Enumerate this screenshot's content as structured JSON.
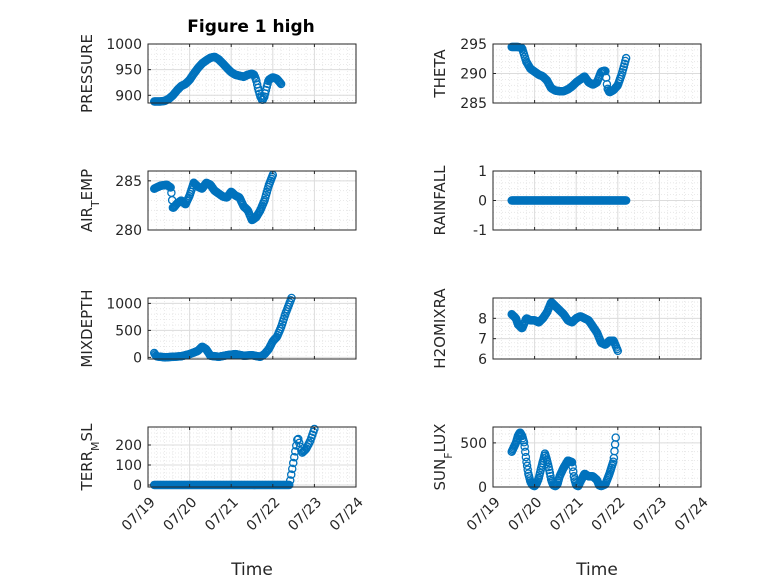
{
  "figure": {
    "title": "Figure 1 high",
    "marker_color": "#0072BD",
    "grid": true,
    "minor_grid": true
  },
  "chart_data": [
    {
      "type": "scatter",
      "ylabel": "PRESSURE",
      "ylim": [
        885,
        1000
      ],
      "yticks": [
        900,
        950,
        1000
      ],
      "xlim": [
        0,
        5
      ],
      "xticks": [
        0,
        1,
        2,
        3,
        4,
        5
      ],
      "xticklabels": [],
      "curve": [
        [
          0.15,
          888
        ],
        [
          0.2,
          888
        ],
        [
          0.3,
          888
        ],
        [
          0.4,
          889
        ],
        [
          0.5,
          893
        ],
        [
          0.6,
          900
        ],
        [
          0.7,
          910
        ],
        [
          0.8,
          918
        ],
        [
          0.9,
          922
        ],
        [
          1.0,
          930
        ],
        [
          1.1,
          942
        ],
        [
          1.2,
          953
        ],
        [
          1.3,
          962
        ],
        [
          1.4,
          968
        ],
        [
          1.5,
          973
        ],
        [
          1.6,
          975
        ],
        [
          1.7,
          970
        ],
        [
          1.8,
          962
        ],
        [
          1.9,
          953
        ],
        [
          2.0,
          945
        ],
        [
          2.1,
          940
        ],
        [
          2.2,
          938
        ],
        [
          2.3,
          936
        ],
        [
          2.4,
          940
        ],
        [
          2.5,
          942
        ],
        [
          2.55,
          940
        ],
        [
          2.6,
          930
        ],
        [
          2.65,
          912
        ],
        [
          2.7,
          898
        ],
        [
          2.75,
          890
        ],
        [
          2.8,
          898
        ],
        [
          2.85,
          915
        ],
        [
          2.9,
          930
        ],
        [
          3.0,
          935
        ],
        [
          3.1,
          932
        ],
        [
          3.2,
          922
        ]
      ],
      "points": 160
    },
    {
      "type": "scatter",
      "ylabel": "THETA",
      "ylim": [
        285,
        295
      ],
      "yticks": [
        285,
        290,
        295
      ],
      "xlim": [
        0,
        5
      ],
      "xticks": [
        0,
        1,
        2,
        3,
        4,
        5
      ],
      "xticklabels": [],
      "curve": [
        [
          0.45,
          294.5
        ],
        [
          0.6,
          294.5
        ],
        [
          0.7,
          294.3
        ],
        [
          0.8,
          292.0
        ],
        [
          0.9,
          290.8
        ],
        [
          1.0,
          290.3
        ],
        [
          1.1,
          289.8
        ],
        [
          1.2,
          289.5
        ],
        [
          1.3,
          288.8
        ],
        [
          1.4,
          287.5
        ],
        [
          1.5,
          287.1
        ],
        [
          1.6,
          287.0
        ],
        [
          1.7,
          287.0
        ],
        [
          1.8,
          287.3
        ],
        [
          1.9,
          287.8
        ],
        [
          2.0,
          288.5
        ],
        [
          2.1,
          289.0
        ],
        [
          2.2,
          289.5
        ],
        [
          2.3,
          288.5
        ],
        [
          2.4,
          288.1
        ],
        [
          2.5,
          288.5
        ],
        [
          2.6,
          290.3
        ],
        [
          2.7,
          290.5
        ],
        [
          2.75,
          287.5
        ],
        [
          2.8,
          286.8
        ],
        [
          2.9,
          287.2
        ],
        [
          3.0,
          288.0
        ],
        [
          3.1,
          290.0
        ],
        [
          3.2,
          292.6
        ]
      ],
      "points": 150
    },
    {
      "type": "scatter",
      "ylabel": "AIR_TEMP",
      "ylim": [
        280,
        286
      ],
      "yticks": [
        280,
        285
      ],
      "xlim": [
        0,
        5
      ],
      "xticks": [
        0,
        1,
        2,
        3,
        4,
        5
      ],
      "xticklabels": [],
      "curve": [
        [
          0.15,
          284.2
        ],
        [
          0.3,
          284.5
        ],
        [
          0.45,
          284.6
        ],
        [
          0.55,
          284.3
        ],
        [
          0.6,
          282.2
        ],
        [
          0.7,
          282.7
        ],
        [
          0.8,
          283.0
        ],
        [
          0.9,
          282.6
        ],
        [
          1.0,
          283.5
        ],
        [
          1.1,
          284.8
        ],
        [
          1.2,
          284.4
        ],
        [
          1.3,
          284.2
        ],
        [
          1.4,
          284.8
        ],
        [
          1.5,
          284.6
        ],
        [
          1.6,
          284.0
        ],
        [
          1.7,
          283.7
        ],
        [
          1.8,
          283.4
        ],
        [
          1.9,
          283.3
        ],
        [
          2.0,
          283.9
        ],
        [
          2.1,
          283.5
        ],
        [
          2.2,
          283.3
        ],
        [
          2.3,
          282.4
        ],
        [
          2.4,
          282.0
        ],
        [
          2.5,
          281.0
        ],
        [
          2.6,
          281.3
        ],
        [
          2.7,
          282.0
        ],
        [
          2.8,
          283.0
        ],
        [
          2.9,
          284.5
        ],
        [
          3.0,
          285.6
        ]
      ],
      "points": 160
    },
    {
      "type": "scatter",
      "ylabel": "RAINFALL",
      "ylim": [
        -1,
        1
      ],
      "yticks": [
        -1,
        0,
        1
      ],
      "xlim": [
        0,
        5
      ],
      "xticks": [
        0,
        1,
        2,
        3,
        4,
        5
      ],
      "xticklabels": [],
      "curve": [
        [
          0.45,
          0
        ],
        [
          3.2,
          0
        ]
      ],
      "points": 150
    },
    {
      "type": "scatter",
      "ylabel": "MIXDEPTH",
      "ylim": [
        -30,
        1100
      ],
      "yticks": [
        0,
        500,
        1000
      ],
      "xlim": [
        0,
        5
      ],
      "xticks": [
        0,
        1,
        2,
        3,
        4,
        5
      ],
      "xticklabels": [],
      "curve": [
        [
          0.15,
          80
        ],
        [
          0.2,
          20
        ],
        [
          0.4,
          0
        ],
        [
          0.6,
          10
        ],
        [
          0.8,
          20
        ],
        [
          1.0,
          60
        ],
        [
          1.2,
          120
        ],
        [
          1.3,
          200
        ],
        [
          1.4,
          150
        ],
        [
          1.5,
          30
        ],
        [
          1.7,
          10
        ],
        [
          1.9,
          40
        ],
        [
          2.1,
          60
        ],
        [
          2.3,
          30
        ],
        [
          2.5,
          40
        ],
        [
          2.7,
          10
        ],
        [
          2.8,
          60
        ],
        [
          2.9,
          150
        ],
        [
          3.0,
          300
        ],
        [
          3.1,
          380
        ],
        [
          3.2,
          560
        ],
        [
          3.3,
          800
        ],
        [
          3.45,
          1100
        ]
      ],
      "points": 160
    },
    {
      "type": "scatter",
      "ylabel": "H2OMIXRA",
      "ylim": [
        6,
        9
      ],
      "yticks": [
        6,
        7,
        8
      ],
      "xlim": [
        0,
        5
      ],
      "xticks": [
        0,
        1,
        2,
        3,
        4,
        5
      ],
      "xticklabels": [],
      "curve": [
        [
          0.45,
          8.2
        ],
        [
          0.55,
          8.0
        ],
        [
          0.6,
          7.7
        ],
        [
          0.7,
          7.5
        ],
        [
          0.8,
          8.0
        ],
        [
          0.9,
          7.9
        ],
        [
          1.0,
          7.9
        ],
        [
          1.1,
          7.8
        ],
        [
          1.2,
          8.0
        ],
        [
          1.3,
          8.3
        ],
        [
          1.4,
          8.8
        ],
        [
          1.5,
          8.6
        ],
        [
          1.6,
          8.4
        ],
        [
          1.7,
          8.2
        ],
        [
          1.8,
          7.9
        ],
        [
          1.9,
          7.8
        ],
        [
          2.0,
          8.0
        ],
        [
          2.1,
          8.1
        ],
        [
          2.2,
          8.0
        ],
        [
          2.3,
          7.9
        ],
        [
          2.4,
          7.6
        ],
        [
          2.5,
          7.3
        ],
        [
          2.6,
          6.8
        ],
        [
          2.7,
          6.7
        ],
        [
          2.8,
          6.9
        ],
        [
          2.9,
          6.9
        ],
        [
          3.0,
          6.4
        ]
      ],
      "points": 150
    },
    {
      "type": "scatter",
      "ylabel": "TERR_MSL",
      "ylim": [
        -10,
        290
      ],
      "yticks": [
        0,
        100,
        200
      ],
      "xlim": [
        0,
        5
      ],
      "xticks": [
        0,
        1,
        2,
        3,
        4,
        5
      ],
      "xticklabels": [
        "07/19",
        "07/20",
        "07/21",
        "07/22",
        "07/23",
        "07/24"
      ],
      "xlabel": "Time",
      "curve": [
        [
          0.15,
          0
        ],
        [
          1.0,
          0
        ],
        [
          2.0,
          0
        ],
        [
          3.2,
          0
        ],
        [
          3.4,
          0
        ],
        [
          3.5,
          120
        ],
        [
          3.6,
          240
        ],
        [
          3.7,
          160
        ],
        [
          3.8,
          180
        ],
        [
          3.9,
          220
        ],
        [
          4.0,
          280
        ]
      ],
      "points": 160
    },
    {
      "type": "scatter",
      "ylabel": "SUN_FLUX",
      "ylim": [
        0,
        680
      ],
      "yticks": [
        0,
        500
      ],
      "xlim": [
        0,
        5
      ],
      "xticks": [
        0,
        1,
        2,
        3,
        4,
        5
      ],
      "xticklabels": [
        "07/19",
        "07/20",
        "07/21",
        "07/22",
        "07/23",
        "07/24"
      ],
      "xlabel": "Time",
      "curve": [
        [
          0.45,
          400
        ],
        [
          0.55,
          500
        ],
        [
          0.6,
          580
        ],
        [
          0.65,
          620
        ],
        [
          0.7,
          580
        ],
        [
          0.75,
          500
        ],
        [
          0.8,
          300
        ],
        [
          0.85,
          150
        ],
        [
          0.9,
          60
        ],
        [
          0.95,
          20
        ],
        [
          1.0,
          10
        ],
        [
          1.05,
          40
        ],
        [
          1.1,
          100
        ],
        [
          1.15,
          200
        ],
        [
          1.25,
          380
        ],
        [
          1.3,
          300
        ],
        [
          1.35,
          200
        ],
        [
          1.4,
          80
        ],
        [
          1.45,
          20
        ],
        [
          1.5,
          10
        ],
        [
          1.55,
          30
        ],
        [
          1.6,
          120
        ],
        [
          1.7,
          220
        ],
        [
          1.8,
          300
        ],
        [
          1.9,
          280
        ],
        [
          1.95,
          100
        ],
        [
          2.0,
          20
        ],
        [
          2.05,
          10
        ],
        [
          2.1,
          60
        ],
        [
          2.2,
          150
        ],
        [
          2.3,
          120
        ],
        [
          2.4,
          120
        ],
        [
          2.5,
          80
        ],
        [
          2.55,
          20
        ],
        [
          2.6,
          10
        ],
        [
          2.7,
          30
        ],
        [
          2.8,
          150
        ],
        [
          2.9,
          300
        ],
        [
          2.95,
          560
        ]
      ],
      "points": 170
    }
  ]
}
